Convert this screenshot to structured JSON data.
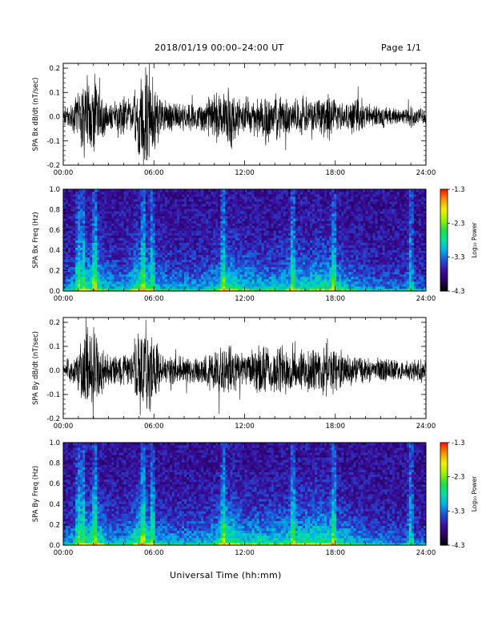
{
  "header": {
    "title": "2018/01/19   00:00–24:00 UT",
    "page": "Page 1/1"
  },
  "xlabel": "Universal Time (hh:mm)",
  "colors": {
    "trace": "#000000",
    "cmap": [
      "#000000",
      "#2a0060",
      "#3a10a0",
      "#2050d8",
      "#00b0e8",
      "#00e0a0",
      "#20e040",
      "#a0f000",
      "#f0f000",
      "#ff9000",
      "#ff1000"
    ]
  },
  "chart_data": [
    {
      "type": "line",
      "ylabel": "SPA Bx dB/dt (nT/sec)",
      "x_ticks": [
        "00:00",
        "06:00",
        "12:00",
        "18:00",
        "24:00"
      ],
      "xlim": [
        0,
        24
      ],
      "ylim": [
        -0.2,
        0.22
      ],
      "y_ticks": [
        "-0.2",
        "-0.1",
        "0.0",
        "0.1",
        "0.2"
      ],
      "y_tick_values": [
        -0.2,
        -0.1,
        0.0,
        0.1,
        0.2
      ],
      "series": [
        {
          "hours": [
            0,
            0.5,
            1,
            1.5,
            2,
            2.5,
            3,
            3.5,
            4,
            4.5,
            5,
            5.5,
            6,
            6.5,
            7,
            7.5,
            8,
            8.5,
            9,
            9.5,
            10,
            10.5,
            11,
            11.5,
            12,
            12.5,
            13,
            13.5,
            14,
            14.5,
            15,
            15.5,
            16,
            16.5,
            17,
            17.5,
            18,
            18.5,
            19,
            19.5,
            20,
            20.5,
            21,
            21.5,
            22,
            22.5,
            23,
            23.5,
            24
          ],
          "amplitude": [
            0.04,
            0.05,
            0.12,
            0.2,
            0.22,
            0.12,
            0.06,
            0.08,
            0.1,
            0.07,
            0.2,
            0.22,
            0.15,
            0.08,
            0.08,
            0.06,
            0.07,
            0.06,
            0.06,
            0.08,
            0.12,
            0.1,
            0.16,
            0.1,
            0.07,
            0.08,
            0.1,
            0.14,
            0.1,
            0.12,
            0.07,
            0.08,
            0.1,
            0.07,
            0.09,
            0.12,
            0.08,
            0.06,
            0.07,
            0.1,
            0.06,
            0.05,
            0.06,
            0.05,
            0.05,
            0.04,
            0.05,
            0.04,
            0.04
          ]
        }
      ]
    },
    {
      "type": "heatmap",
      "ylabel": "SPA Bx Freq (Hz)",
      "x_ticks": [
        "00:00",
        "06:00",
        "12:00",
        "18:00",
        "24:00"
      ],
      "xlim": [
        0,
        24
      ],
      "ylim": [
        0,
        1.0
      ],
      "y_ticks": [
        "0.0",
        "0.2",
        "0.4",
        "0.6",
        "0.8",
        "1.0"
      ],
      "y_tick_values": [
        0.0,
        0.2,
        0.4,
        0.6,
        0.8,
        1.0
      ],
      "colorbar": {
        "label": "Log₁₀ Power",
        "range": [
          -4.3,
          -1.3
        ],
        "ticks": [
          "-1.3",
          "-2.3",
          "-3.3",
          "-4.3"
        ],
        "tick_values": [
          -1.3,
          -2.3,
          -3.3,
          -4.3
        ]
      },
      "intensity_hours": [
        0,
        1,
        2,
        3,
        4,
        5,
        6,
        7,
        8,
        9,
        10,
        11,
        12,
        13,
        14,
        15,
        16,
        17,
        18,
        19,
        20,
        21,
        22,
        23,
        24
      ],
      "intensity": [
        0.35,
        0.55,
        0.75,
        0.5,
        0.45,
        0.8,
        0.55,
        0.45,
        0.45,
        0.45,
        0.55,
        0.75,
        0.6,
        0.55,
        0.55,
        0.6,
        0.65,
        0.7,
        0.65,
        0.5,
        0.4,
        0.35,
        0.35,
        0.3,
        0.3
      ],
      "bright_streaks_hours": [
        1.0,
        1.3,
        2.1,
        5.3,
        5.9,
        10.6,
        15.2,
        17.9,
        23.0
      ]
    },
    {
      "type": "line",
      "ylabel": "SPA By dB/dt (nT/sec)",
      "x_ticks": [
        "00:00",
        "06:00",
        "12:00",
        "18:00",
        "24:00"
      ],
      "xlim": [
        0,
        24
      ],
      "ylim": [
        -0.2,
        0.22
      ],
      "y_ticks": [
        "-0.2",
        "-0.1",
        "0.0",
        "0.1",
        "0.2"
      ],
      "y_tick_values": [
        -0.2,
        -0.1,
        0.0,
        0.1,
        0.2
      ],
      "series": [
        {
          "hours": [
            0,
            0.5,
            1,
            1.5,
            2,
            2.5,
            3,
            3.5,
            4,
            4.5,
            5,
            5.5,
            6,
            6.5,
            7,
            7.5,
            8,
            8.5,
            9,
            9.5,
            10,
            10.5,
            11,
            11.5,
            12,
            12.5,
            13,
            13.5,
            14,
            14.5,
            15,
            15.5,
            16,
            16.5,
            17,
            17.5,
            18,
            18.5,
            19,
            19.5,
            20,
            20.5,
            21,
            21.5,
            22,
            22.5,
            23,
            23.5,
            24
          ],
          "amplitude": [
            0.04,
            0.05,
            0.1,
            0.2,
            0.22,
            0.12,
            0.06,
            0.07,
            0.08,
            0.07,
            0.22,
            0.22,
            0.18,
            0.08,
            0.07,
            0.06,
            0.07,
            0.06,
            0.06,
            0.07,
            0.1,
            0.12,
            0.12,
            0.1,
            0.08,
            0.1,
            0.12,
            0.12,
            0.1,
            0.12,
            0.1,
            0.08,
            0.1,
            0.1,
            0.12,
            0.12,
            0.1,
            0.08,
            0.07,
            0.07,
            0.06,
            0.05,
            0.06,
            0.05,
            0.05,
            0.04,
            0.05,
            0.05,
            0.04
          ]
        }
      ]
    },
    {
      "type": "heatmap",
      "ylabel": "SPA By Freq (Hz)",
      "x_ticks": [
        "00:00",
        "06:00",
        "12:00",
        "18:00",
        "24:00"
      ],
      "xlim": [
        0,
        24
      ],
      "ylim": [
        0,
        1.0
      ],
      "y_ticks": [
        "0.0",
        "0.2",
        "0.4",
        "0.6",
        "0.8",
        "1.0"
      ],
      "y_tick_values": [
        0.0,
        0.2,
        0.4,
        0.6,
        0.8,
        1.0
      ],
      "colorbar": {
        "label": "Log₁₀ Power",
        "range": [
          -4.3,
          -1.3
        ],
        "ticks": [
          "-1.3",
          "-2.3",
          "-3.3",
          "-4.3"
        ],
        "tick_values": [
          -1.3,
          -2.3,
          -3.3,
          -4.3
        ]
      },
      "intensity_hours": [
        0,
        1,
        2,
        3,
        4,
        5,
        6,
        7,
        8,
        9,
        10,
        11,
        12,
        13,
        14,
        15,
        16,
        17,
        18,
        19,
        20,
        21,
        22,
        23,
        24
      ],
      "intensity": [
        0.35,
        0.55,
        0.75,
        0.5,
        0.45,
        0.8,
        0.55,
        0.45,
        0.45,
        0.45,
        0.55,
        0.8,
        0.6,
        0.6,
        0.6,
        0.65,
        0.7,
        0.75,
        0.65,
        0.5,
        0.4,
        0.35,
        0.35,
        0.3,
        0.3
      ],
      "bright_streaks_hours": [
        1.0,
        1.3,
        2.1,
        5.3,
        5.9,
        10.6,
        15.2,
        17.9,
        23.0
      ]
    }
  ]
}
